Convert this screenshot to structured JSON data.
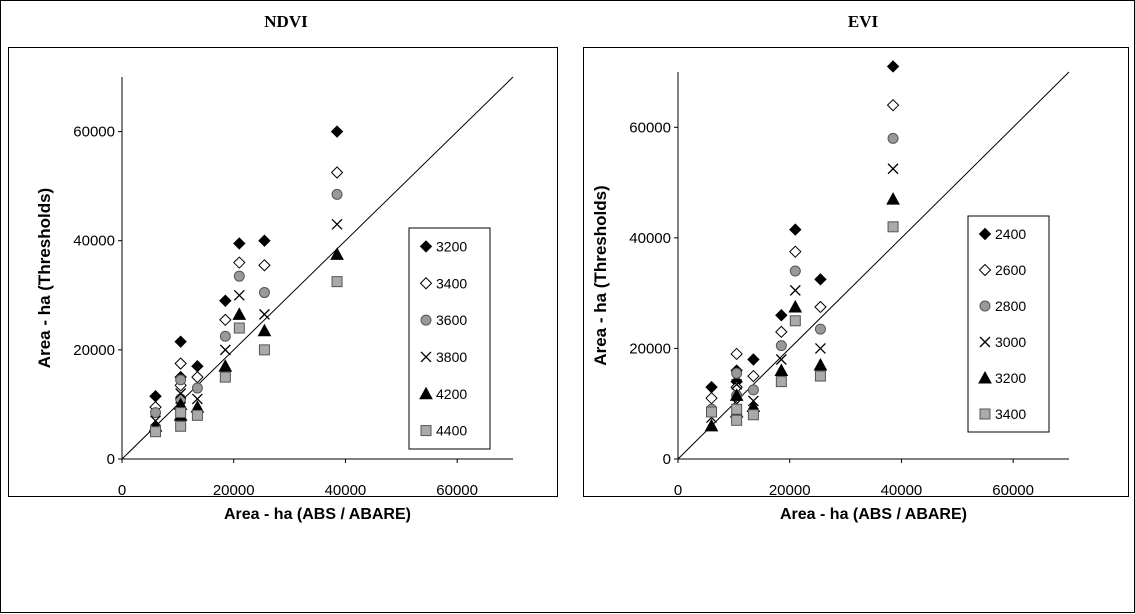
{
  "chart_data": [
    {
      "type": "scatter",
      "title": "NDVI",
      "xlabel": "Area - ha (ABS / ABARE)",
      "ylabel": "Area - ha (Thresholds)",
      "xlim": [
        0,
        70000
      ],
      "ylim": [
        0,
        70000
      ],
      "xticks": [
        "0",
        "20000",
        "40000",
        "60000"
      ],
      "yticks": [
        "0",
        "20000",
        "40000",
        "60000"
      ],
      "grid": false,
      "legend_position": "right",
      "reference_line": "1:1",
      "series": [
        {
          "name": "3200",
          "marker": "diamond-filled",
          "x": [
            6000,
            10500,
            10500,
            13500,
            18500,
            21000,
            25500,
            38500
          ],
          "y": [
            11500,
            21500,
            15000,
            17000,
            29000,
            39500,
            40000,
            60000
          ]
        },
        {
          "name": "3400",
          "marker": "diamond-open",
          "x": [
            6000,
            10500,
            10500,
            13500,
            18500,
            21000,
            25500,
            38500
          ],
          "y": [
            9500,
            17500,
            13500,
            15000,
            25500,
            36000,
            35500,
            52500
          ]
        },
        {
          "name": "3600",
          "marker": "circle-gray",
          "x": [
            6000,
            10500,
            10500,
            13500,
            18500,
            21000,
            25500,
            38500
          ],
          "y": [
            8500,
            14500,
            11000,
            13000,
            22500,
            33500,
            30500,
            48500
          ]
        },
        {
          "name": "3800",
          "marker": "cross",
          "x": [
            6000,
            10500,
            10500,
            13500,
            18500,
            21000,
            25500,
            38500
          ],
          "y": [
            7000,
            12000,
            9500,
            11000,
            20000,
            30000,
            26500,
            43000
          ]
        },
        {
          "name": "4200",
          "marker": "triangle-filled",
          "x": [
            6000,
            10500,
            10500,
            13500,
            18500,
            21000,
            25500,
            38500
          ],
          "y": [
            6000,
            10000,
            8000,
            9500,
            17000,
            26500,
            23500,
            37500
          ]
        },
        {
          "name": "4400",
          "marker": "square-gray",
          "x": [
            6000,
            10500,
            10500,
            13500,
            18500,
            21000,
            25500,
            38500
          ],
          "y": [
            5000,
            8500,
            6000,
            8000,
            15000,
            24000,
            20000,
            32500
          ]
        }
      ]
    },
    {
      "type": "scatter",
      "title": "EVI",
      "xlabel": "Area - ha (ABS / ABARE)",
      "ylabel": "Area - ha (Thresholds)",
      "xlim": [
        0,
        70000
      ],
      "ylim": [
        0,
        70000
      ],
      "xticks": [
        "0",
        "20000",
        "40000",
        "60000"
      ],
      "yticks": [
        "0",
        "20000",
        "40000",
        "60000"
      ],
      "grid": false,
      "legend_position": "right",
      "reference_line": "1:1",
      "series": [
        {
          "name": "2400",
          "marker": "diamond-filled",
          "x": [
            6000,
            10500,
            10500,
            13500,
            18500,
            21000,
            25500,
            38500
          ],
          "y": [
            13000,
            16000,
            14000,
            18000,
            26000,
            41500,
            32500,
            71000
          ]
        },
        {
          "name": "2600",
          "marker": "diamond-open",
          "x": [
            6000,
            10500,
            10500,
            13500,
            18500,
            21000,
            25500,
            38500
          ],
          "y": [
            11000,
            19000,
            13000,
            15000,
            23000,
            37500,
            27500,
            64000
          ]
        },
        {
          "name": "2800",
          "marker": "circle-gray",
          "x": [
            6000,
            10500,
            10500,
            13500,
            18500,
            21000,
            25500,
            38500
          ],
          "y": [
            9000,
            15500,
            11500,
            12500,
            20500,
            34000,
            23500,
            58000
          ]
        },
        {
          "name": "3000",
          "marker": "cross",
          "x": [
            6000,
            10500,
            10500,
            13500,
            18500,
            21000,
            25500,
            38500
          ],
          "y": [
            7500,
            13500,
            10000,
            10500,
            18000,
            30500,
            20000,
            52500
          ]
        },
        {
          "name": "3200",
          "marker": "triangle-filled",
          "x": [
            6000,
            10500,
            10500,
            13500,
            18500,
            21000,
            25500,
            38500
          ],
          "y": [
            6000,
            11500,
            8500,
            9500,
            16000,
            27500,
            17000,
            47000
          ]
        },
        {
          "name": "3400",
          "marker": "square-gray",
          "x": [
            6000,
            10500,
            10500,
            13500,
            18500,
            21000,
            25500,
            38500
          ],
          "y": [
            8500,
            9000,
            7000,
            8000,
            14000,
            25000,
            15000,
            42000
          ]
        }
      ]
    }
  ]
}
